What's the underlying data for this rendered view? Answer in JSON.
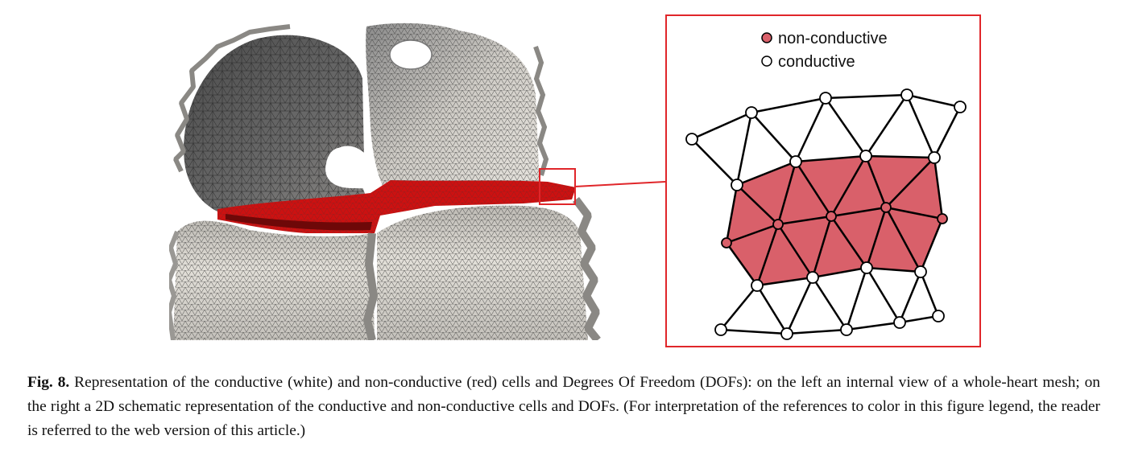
{
  "figure": {
    "legend": {
      "non_conductive": "non-conductive",
      "conductive": "conductive"
    },
    "caption": {
      "label": "Fig. 8.",
      "text": " Representation of the conductive (white) and non-conductive (red) cells and Degrees Of Freedom (DOFs): on the left an internal view of a whole-heart mesh; on the right a 2D schematic representation of the conductive and non-conductive cells and DOFs. (For interpretation of the references to color in this figure legend, the reader is referred to the web version of this article.)"
    }
  },
  "colors": {
    "red_cells": "#d9606a",
    "red_band": "#cc1111",
    "frame": "#e0262a",
    "mesh_dark": "#555555",
    "mesh_light": "#e8e6e2"
  }
}
